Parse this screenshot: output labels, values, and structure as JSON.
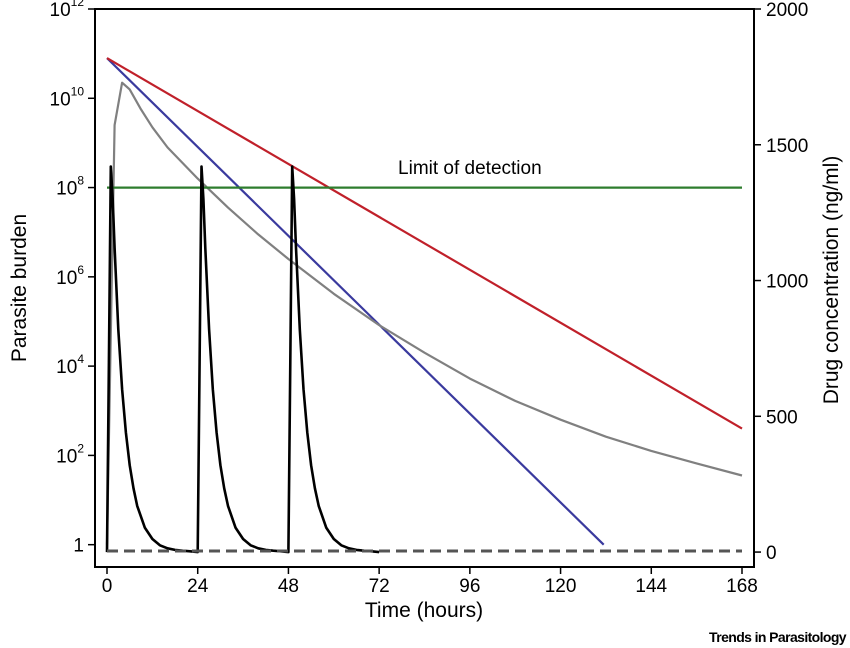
{
  "credit": "Trends in Parasitology",
  "chart_data": {
    "type": "line",
    "title": "",
    "xlabel": "Time (hours)",
    "ylabel_left": "Parasite burden",
    "ylabel_right": "Drug concentration (ng/ml)",
    "x_ticks": [
      0,
      24,
      48,
      72,
      96,
      120,
      144,
      168
    ],
    "xlim": [
      0,
      168
    ],
    "y_left": {
      "scale": "log",
      "range_log10": [
        -0.5,
        12
      ],
      "ticks": [
        {
          "value_log10": 0,
          "base": "1",
          "exp": ""
        },
        {
          "value_log10": 2,
          "base": "10",
          "exp": "2"
        },
        {
          "value_log10": 4,
          "base": "10",
          "exp": "4"
        },
        {
          "value_log10": 6,
          "base": "10",
          "exp": "6"
        },
        {
          "value_log10": 8,
          "base": "10",
          "exp": "8"
        },
        {
          "value_log10": 10,
          "base": "10",
          "exp": "10"
        },
        {
          "value_log10": 12,
          "base": "10",
          "exp": "12"
        }
      ]
    },
    "y_right": {
      "scale": "linear",
      "range": [
        -55,
        2000
      ],
      "ticks": [
        0,
        500,
        1000,
        1500,
        2000
      ]
    },
    "annotations": [
      {
        "text": "Limit of detection",
        "x": 96,
        "y_log10": 8.3
      }
    ],
    "series": [
      {
        "color": "#3a3a9e",
        "axis": "left",
        "style": "solid",
        "x": [
          0,
          131.4
        ],
        "y_log10": [
          10.9,
          0
        ]
      },
      {
        "color": "#c0202a",
        "axis": "left",
        "style": "solid",
        "x": [
          0,
          168
        ],
        "y_log10": [
          10.9,
          2.6
        ]
      },
      {
        "color": "#808080",
        "axis": "left",
        "style": "solid",
        "x": [
          0,
          2,
          4,
          6,
          9,
          12,
          16,
          24,
          32,
          40,
          48,
          60,
          72,
          84,
          96,
          108,
          120,
          132,
          144,
          156,
          168
        ],
        "y_log10": [
          0,
          9.4,
          10.35,
          10.2,
          9.75,
          9.35,
          8.9,
          8.2,
          7.55,
          6.95,
          6.4,
          5.62,
          4.92,
          4.3,
          3.72,
          3.22,
          2.8,
          2.42,
          2.1,
          1.82,
          1.55
        ]
      },
      {
        "color": "#2e7d2e",
        "axis": "left",
        "style": "solid",
        "x": [
          0,
          168
        ],
        "y_log10": [
          8.0,
          8.0
        ]
      },
      {
        "color": "#000000",
        "axis": "right",
        "style": "solid",
        "x": [
          0,
          0.5,
          1,
          1.5,
          2,
          3,
          4,
          5,
          6,
          7,
          8,
          10,
          12,
          14,
          16,
          18,
          20,
          22,
          24,
          24.5,
          25,
          25.5,
          26,
          27,
          28,
          29,
          30,
          31,
          32,
          34,
          36,
          38,
          40,
          42,
          44,
          46,
          48,
          48.5,
          49,
          49.5,
          50,
          51,
          52,
          53,
          54,
          55,
          56,
          58,
          60,
          62,
          64,
          66,
          68,
          70,
          72
        ],
        "y": [
          0,
          700,
          1420,
          1300,
          1120,
          820,
          600,
          440,
          320,
          235,
          170,
          90,
          48,
          25,
          14,
          8,
          5,
          3,
          0,
          700,
          1420,
          1300,
          1120,
          820,
          600,
          440,
          320,
          235,
          170,
          90,
          48,
          25,
          14,
          8,
          5,
          3,
          0,
          700,
          1420,
          1300,
          1120,
          820,
          600,
          440,
          320,
          235,
          170,
          90,
          48,
          25,
          14,
          8,
          5,
          3,
          0
        ]
      },
      {
        "color": "#555555",
        "axis": "right",
        "style": "dashed",
        "x": [
          0,
          168
        ],
        "y": [
          4,
          4
        ]
      }
    ]
  }
}
